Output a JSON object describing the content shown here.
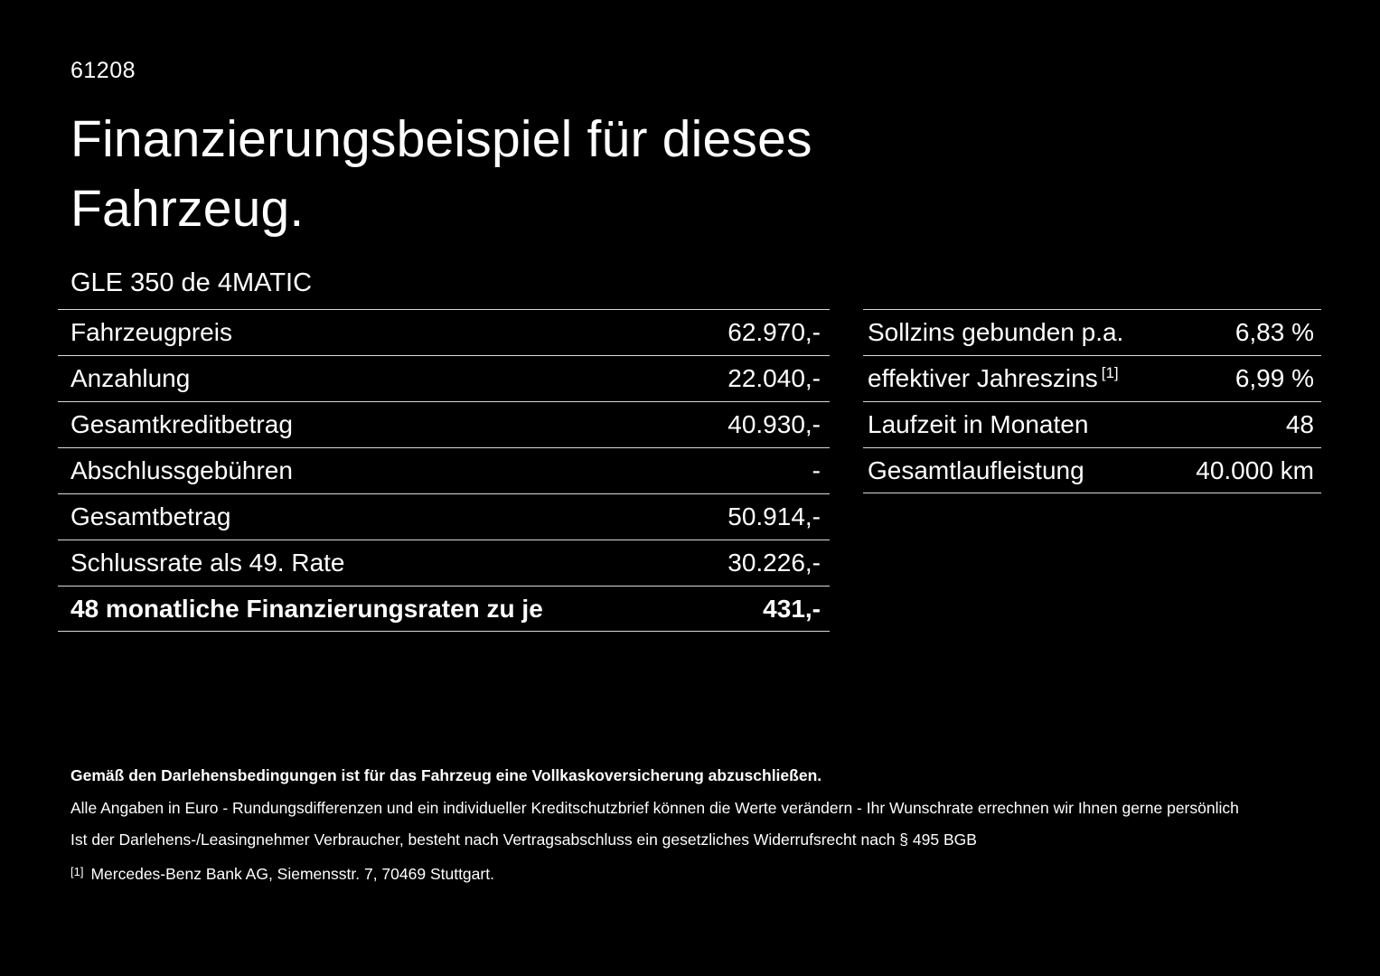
{
  "page": {
    "id_number": "61208",
    "title_line1": "Finanzierungsbeispiel für dieses",
    "title_line2": "Fahrzeug.",
    "vehicle_model": "GLE 350 de 4MATIC"
  },
  "left_table": {
    "rows": [
      {
        "label": "Fahrzeugpreis",
        "value": "62.970,-"
      },
      {
        "label": "Anzahlung",
        "value": "22.040,-"
      },
      {
        "label": "Gesamtkreditbetrag",
        "value": "40.930,-"
      },
      {
        "label": "Abschlussgebühren",
        "value": "-"
      },
      {
        "label": "Gesamtbetrag",
        "value": "50.914,-"
      },
      {
        "label": "Schlussrate als 49. Rate",
        "value": "30.226,-"
      },
      {
        "label": "48 monatliche Finanzierungsraten zu je",
        "value": "431,-"
      }
    ]
  },
  "right_table": {
    "rows": [
      {
        "label": "Sollzins gebunden p.a.",
        "value": "6,83 %"
      },
      {
        "label": "effektiver Jahreszins",
        "note": "[1]",
        "value": "6,99 %"
      },
      {
        "label": "Laufzeit in Monaten",
        "value": "48"
      },
      {
        "label": "Gesamtlaufleistung",
        "value": "40.000 km"
      }
    ]
  },
  "footer": {
    "line1": "Gemäß den Darlehensbedingungen ist für das Fahrzeug eine Vollkaskoversicherung abzuschließen.",
    "line2": "Alle Angaben in Euro - Rundungsdifferenzen und ein individueller Kreditschutzbrief können die Werte verändern - Ihr Wunschrate errechnen wir Ihnen gerne persönlich",
    "line3": "Ist der Darlehens-/Leasingnehmer Verbraucher, besteht nach Vertragsabschluss ein gesetzliches Widerrufsrecht nach § 495 BGB",
    "footnote_marker": "[1]",
    "footnote_text": "Mercedes-Benz Bank AG, Siemensstr. 7, 70469 Stuttgart."
  },
  "colors": {
    "background": "#000000",
    "text": "#ffffff",
    "divider": "#d9d9d9"
  }
}
